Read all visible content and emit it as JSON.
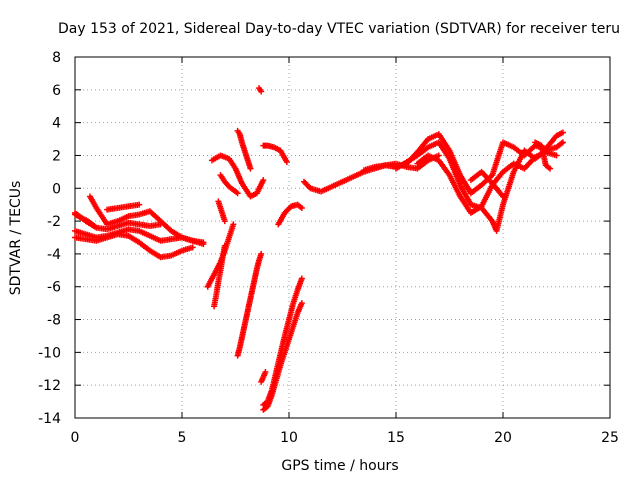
{
  "chart_data": {
    "type": "scatter",
    "title": "Day 153 of 2021, Sidereal Day-to-day VTEC variation (SDTVAR) for receiver teru",
    "xlabel": "GPS time / hours",
    "ylabel": "SDTVAR / TECUs",
    "xlim": [
      0,
      25
    ],
    "ylim": [
      -14,
      8
    ],
    "xticks": [
      "0",
      "5",
      "10",
      "15",
      "20",
      "25"
    ],
    "yticks": [
      "-14",
      "-12",
      "-10",
      "-8",
      "-6",
      "-4",
      "-2",
      "0",
      "2",
      "4",
      "6",
      "8"
    ],
    "grid": true,
    "marker": "+",
    "marker_color": "#ff0000",
    "series": [
      {
        "x": [
          0.0,
          0.5,
          1.0,
          1.5,
          2.0,
          2.5,
          3.0,
          3.5,
          4.0,
          4.5,
          5.0,
          5.5,
          6.0
        ],
        "y": [
          -2.6,
          -2.8,
          -3.0,
          -2.9,
          -2.7,
          -2.5,
          -2.6,
          -2.9,
          -3.2,
          -3.1,
          -3.0,
          -3.2,
          -3.4
        ]
      },
      {
        "x": [
          0.0,
          0.5,
          1.0,
          1.5,
          2.0,
          2.5,
          3.0,
          3.5,
          4.0,
          4.5,
          5.0,
          5.5
        ],
        "y": [
          -3.0,
          -3.1,
          -3.2,
          -3.0,
          -2.8,
          -2.9,
          -3.3,
          -3.8,
          -4.2,
          -4.1,
          -3.8,
          -3.6
        ]
      },
      {
        "x": [
          0.0,
          0.5,
          1.0,
          1.5,
          2.0,
          2.5,
          3.0,
          3.5,
          4.0
        ],
        "y": [
          -1.5,
          -2.0,
          -2.4,
          -2.5,
          -2.3,
          -2.1,
          -2.2,
          -2.3,
          -2.2
        ]
      },
      {
        "x": [
          0.7,
          1.0,
          1.5,
          2.0,
          2.5,
          3.0,
          3.5,
          4.0,
          4.5,
          5.0,
          5.5,
          6.0
        ],
        "y": [
          -0.5,
          -1.2,
          -2.2,
          -2.0,
          -1.7,
          -1.6,
          -1.4,
          -2.0,
          -2.6,
          -3.0,
          -3.2,
          -3.3
        ]
      },
      {
        "x": [
          1.5,
          2.0,
          2.5,
          3.0
        ],
        "y": [
          -1.3,
          -1.2,
          -1.1,
          -1.0
        ]
      },
      {
        "x": [
          0.0,
          0.3,
          0.6,
          0.9
        ],
        "y": [
          -1.6,
          -1.8,
          -2.0,
          -2.3
        ]
      },
      {
        "x": [
          6.2,
          6.4,
          6.6,
          6.8,
          7.0,
          7.2,
          7.4
        ],
        "y": [
          -6.0,
          -5.5,
          -5.0,
          -4.5,
          -3.8,
          -3.0,
          -2.2
        ]
      },
      {
        "x": [
          6.5,
          6.6,
          6.7,
          6.8,
          6.9,
          7.0
        ],
        "y": [
          -7.2,
          -6.5,
          -5.7,
          -5.0,
          -4.2,
          -3.5
        ]
      },
      {
        "x": [
          6.4,
          6.8,
          7.2,
          7.5,
          7.8,
          8.2,
          8.5,
          8.8
        ],
        "y": [
          1.7,
          2.0,
          1.8,
          1.2,
          0.3,
          -0.5,
          -0.3,
          0.5
        ]
      },
      {
        "x": [
          6.8,
          7.0,
          7.2,
          7.4,
          7.6
        ],
        "y": [
          0.8,
          0.4,
          0.1,
          -0.1,
          -0.3
        ]
      },
      {
        "x": [
          7.6,
          7.7,
          7.8,
          7.9,
          8.0,
          8.1,
          8.2
        ],
        "y": [
          3.5,
          3.3,
          2.8,
          2.4,
          2.0,
          1.6,
          1.2
        ]
      },
      {
        "x": [
          7.6,
          7.7,
          7.8,
          7.9,
          8.0,
          8.1,
          8.2,
          8.3,
          8.4,
          8.5,
          8.6,
          8.7
        ],
        "y": [
          -10.2,
          -9.7,
          -9.1,
          -8.5,
          -7.9,
          -7.3,
          -6.7,
          -6.1,
          -5.5,
          -4.9,
          -4.4,
          -4.0
        ]
      },
      {
        "x": [
          6.7,
          7.0
        ],
        "y": [
          -0.8,
          -2.0
        ]
      },
      {
        "x": [
          8.6,
          8.65,
          8.7
        ],
        "y": [
          6.1,
          6.0,
          5.9
        ]
      },
      {
        "x": [
          8.8,
          9.0,
          9.3,
          9.6,
          9.9
        ],
        "y": [
          2.6,
          2.6,
          2.5,
          2.3,
          1.6
        ]
      },
      {
        "x": [
          8.8,
          9.0,
          9.2,
          9.4,
          9.6,
          9.8,
          10.0,
          10.2,
          10.4,
          10.6
        ],
        "y": [
          -13.2,
          -13.0,
          -12.3,
          -11.2,
          -10.1,
          -9.0,
          -8.0,
          -7.0,
          -6.2,
          -5.5
        ]
      },
      {
        "x": [
          8.8,
          9.0,
          9.2,
          9.4,
          9.6,
          9.8,
          10.0,
          10.2,
          10.4,
          10.6
        ],
        "y": [
          -13.5,
          -13.3,
          -12.6,
          -11.7,
          -10.8,
          -10.0,
          -9.2,
          -8.4,
          -7.6,
          -7.0
        ]
      },
      {
        "x": [
          8.7,
          8.8,
          8.9
        ],
        "y": [
          -11.8,
          -11.5,
          -11.2
        ]
      },
      {
        "x": [
          9.5,
          9.8,
          10.1,
          10.4,
          10.6
        ],
        "y": [
          -2.2,
          -1.5,
          -1.1,
          -1.0,
          -1.2
        ]
      },
      {
        "x": [
          10.7,
          11.0,
          11.5,
          12.0,
          12.5,
          13.0,
          13.5,
          14.0,
          14.5,
          15.0,
          15.5,
          16.0,
          16.5,
          17.0
        ],
        "y": [
          0.4,
          0.0,
          -0.2,
          0.1,
          0.4,
          0.7,
          1.0,
          1.2,
          1.4,
          1.5,
          1.3,
          1.2,
          1.7,
          2.0
        ]
      },
      {
        "x": [
          13.5,
          14.0,
          14.5,
          15.0,
          15.5,
          16.0,
          16.5,
          17.0,
          17.5,
          18.0,
          18.5,
          19.0,
          19.5,
          20.0,
          20.5,
          21.0,
          21.5,
          22.0,
          22.5,
          22.8
        ],
        "y": [
          1.1,
          1.3,
          1.4,
          1.3,
          1.5,
          2.2,
          3.0,
          3.3,
          2.3,
          0.8,
          -0.3,
          0.2,
          0.8,
          2.8,
          2.5,
          2.0,
          2.6,
          2.4,
          3.2,
          3.4
        ]
      },
      {
        "x": [
          15.0,
          15.5,
          16.0,
          16.5,
          17.0,
          17.5,
          18.0,
          18.5,
          19.0,
          19.5,
          19.7,
          20.0,
          20.5,
          21.0,
          21.5,
          22.0,
          22.5,
          22.8
        ],
        "y": [
          1.2,
          1.6,
          2.0,
          2.5,
          2.8,
          1.8,
          0.2,
          -1.0,
          -1.2,
          -2.0,
          -2.6,
          -1.0,
          1.0,
          2.3,
          1.8,
          2.3,
          2.5,
          2.8
        ]
      },
      {
        "x": [
          16.0,
          16.5,
          17.0,
          17.5,
          18.0,
          18.5,
          19.0,
          19.5,
          20.0,
          20.5,
          21.0,
          21.5,
          22.0,
          22.5
        ],
        "y": [
          1.5,
          2.0,
          1.7,
          0.8,
          -0.5,
          -1.5,
          -1.1,
          0.2,
          1.0,
          1.5,
          1.2,
          1.9,
          2.2,
          2.0
        ]
      },
      {
        "x": [
          18.5,
          19.0,
          19.5,
          20.0
        ],
        "y": [
          0.5,
          1.0,
          0.3,
          -0.5
        ]
      },
      {
        "x": [
          21.5,
          21.8,
          22.0,
          22.2
        ],
        "y": [
          2.8,
          2.6,
          1.4,
          1.2
        ]
      }
    ]
  }
}
